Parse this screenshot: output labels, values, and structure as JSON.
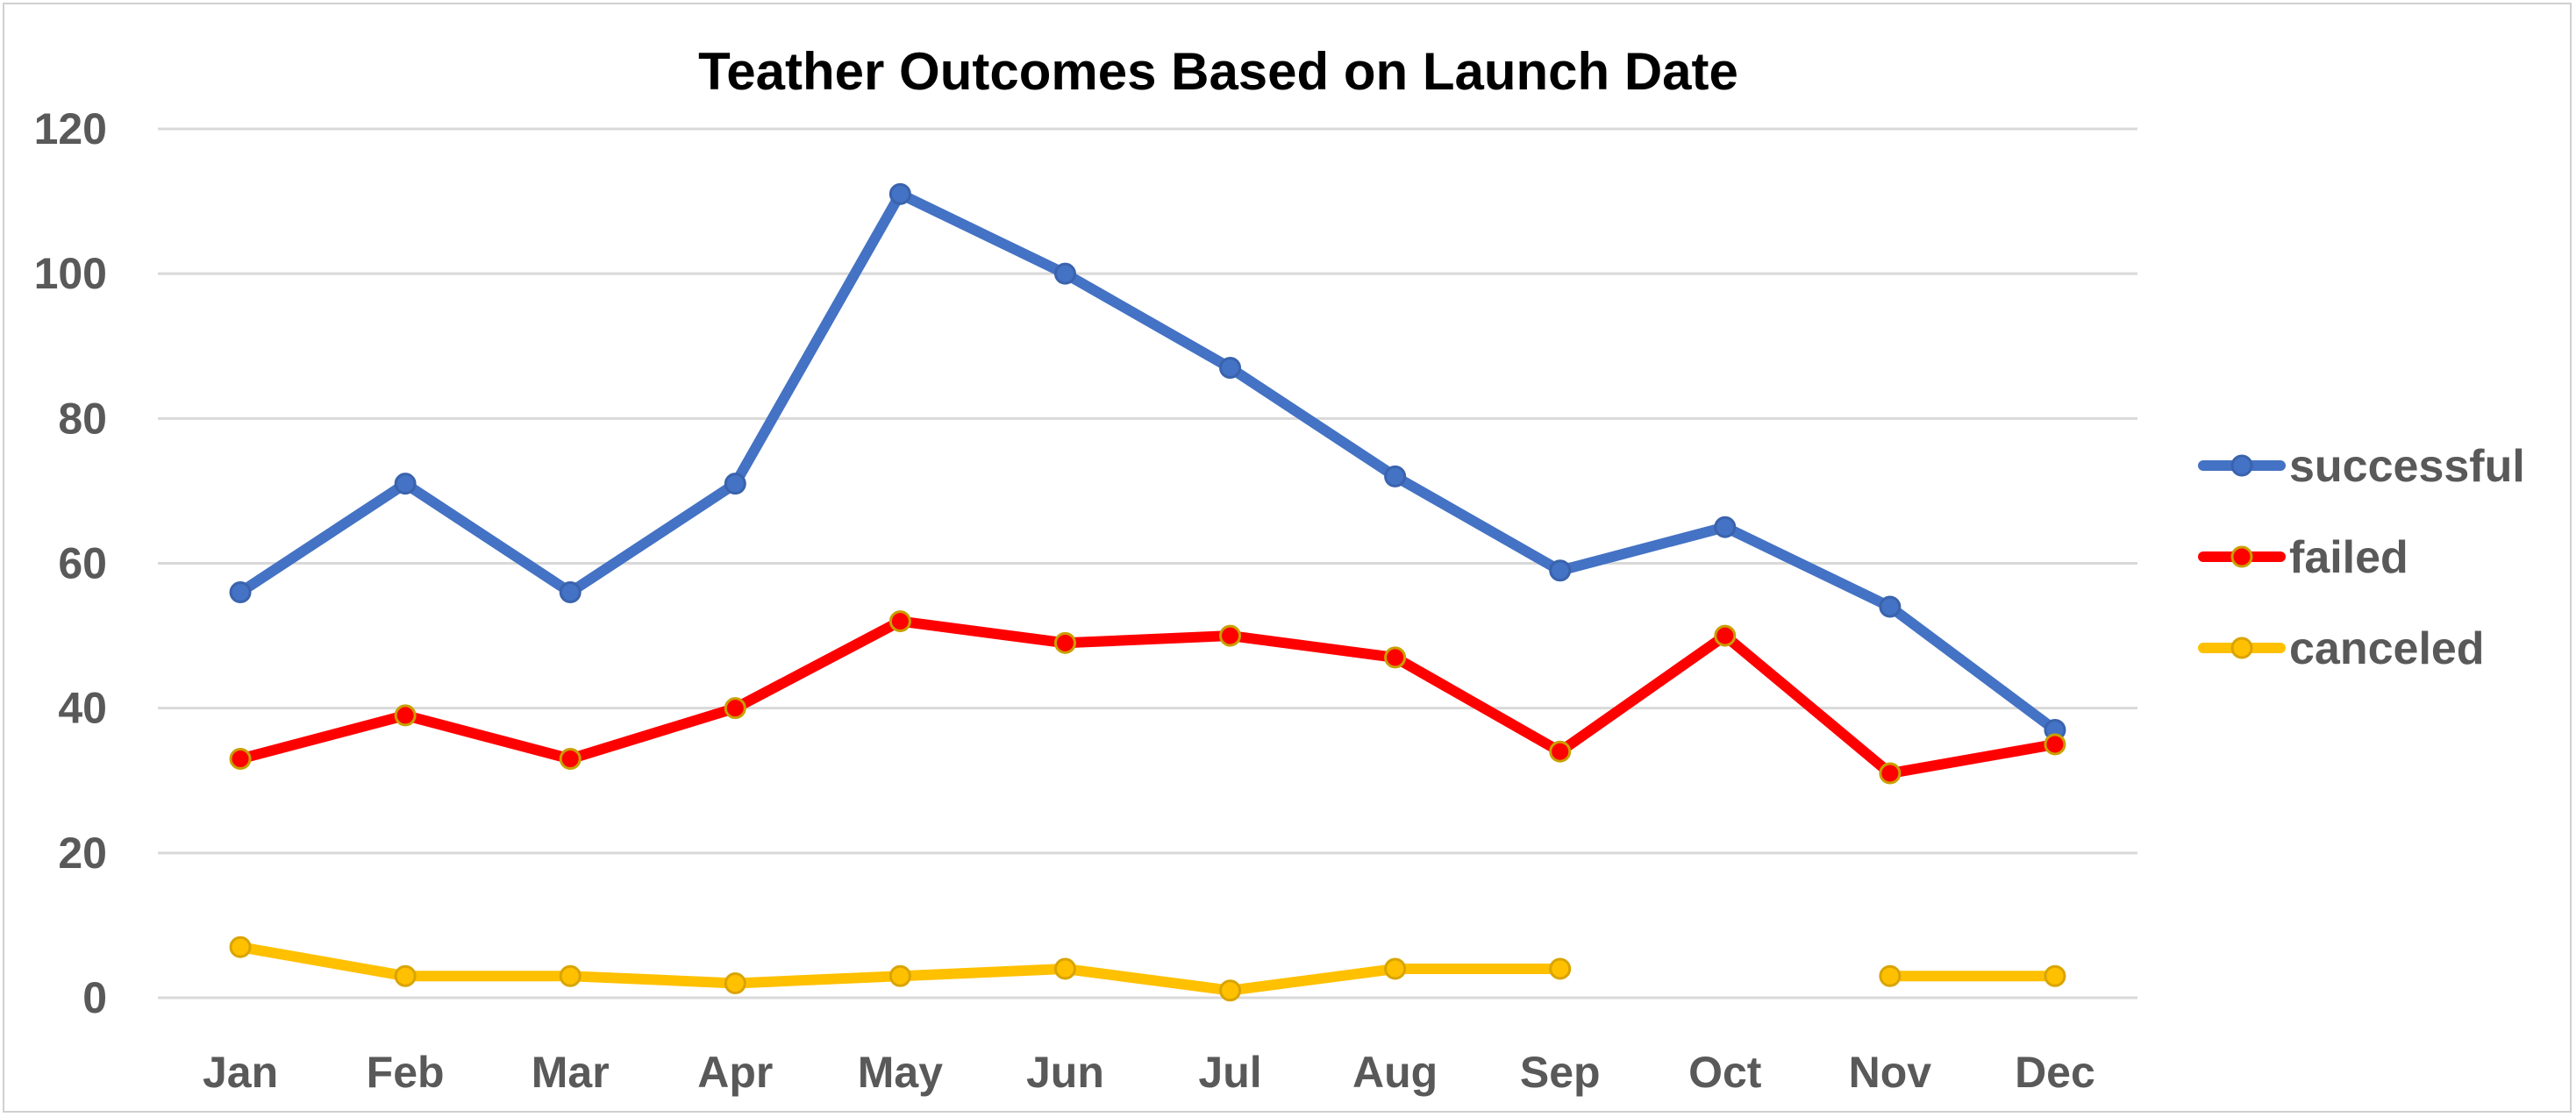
{
  "chart_data": {
    "type": "line",
    "title": "Teather Outcomes Based on Launch Date",
    "xlabel": "",
    "ylabel": "",
    "categories": [
      "Jan",
      "Feb",
      "Mar",
      "Apr",
      "May",
      "Jun",
      "Jul",
      "Aug",
      "Sep",
      "Oct",
      "Nov",
      "Dec"
    ],
    "ylim": [
      0,
      120
    ],
    "yticks": [
      "0",
      "20",
      "40",
      "60",
      "80",
      "100",
      "120"
    ],
    "grid": true,
    "legend_position": "right",
    "series": [
      {
        "name": "successful",
        "color": "#4472C4",
        "values": [
          56,
          71,
          56,
          71,
          111,
          100,
          87,
          72,
          59,
          65,
          54,
          37
        ]
      },
      {
        "name": "failed",
        "color": "#FF0000",
        "values": [
          33,
          39,
          33,
          40,
          52,
          49,
          50,
          47,
          34,
          50,
          31,
          35
        ]
      },
      {
        "name": "canceled",
        "color": "#FFC000",
        "values": [
          7,
          3,
          3,
          2,
          3,
          4,
          1,
          4,
          4,
          null,
          3,
          3
        ]
      }
    ]
  }
}
